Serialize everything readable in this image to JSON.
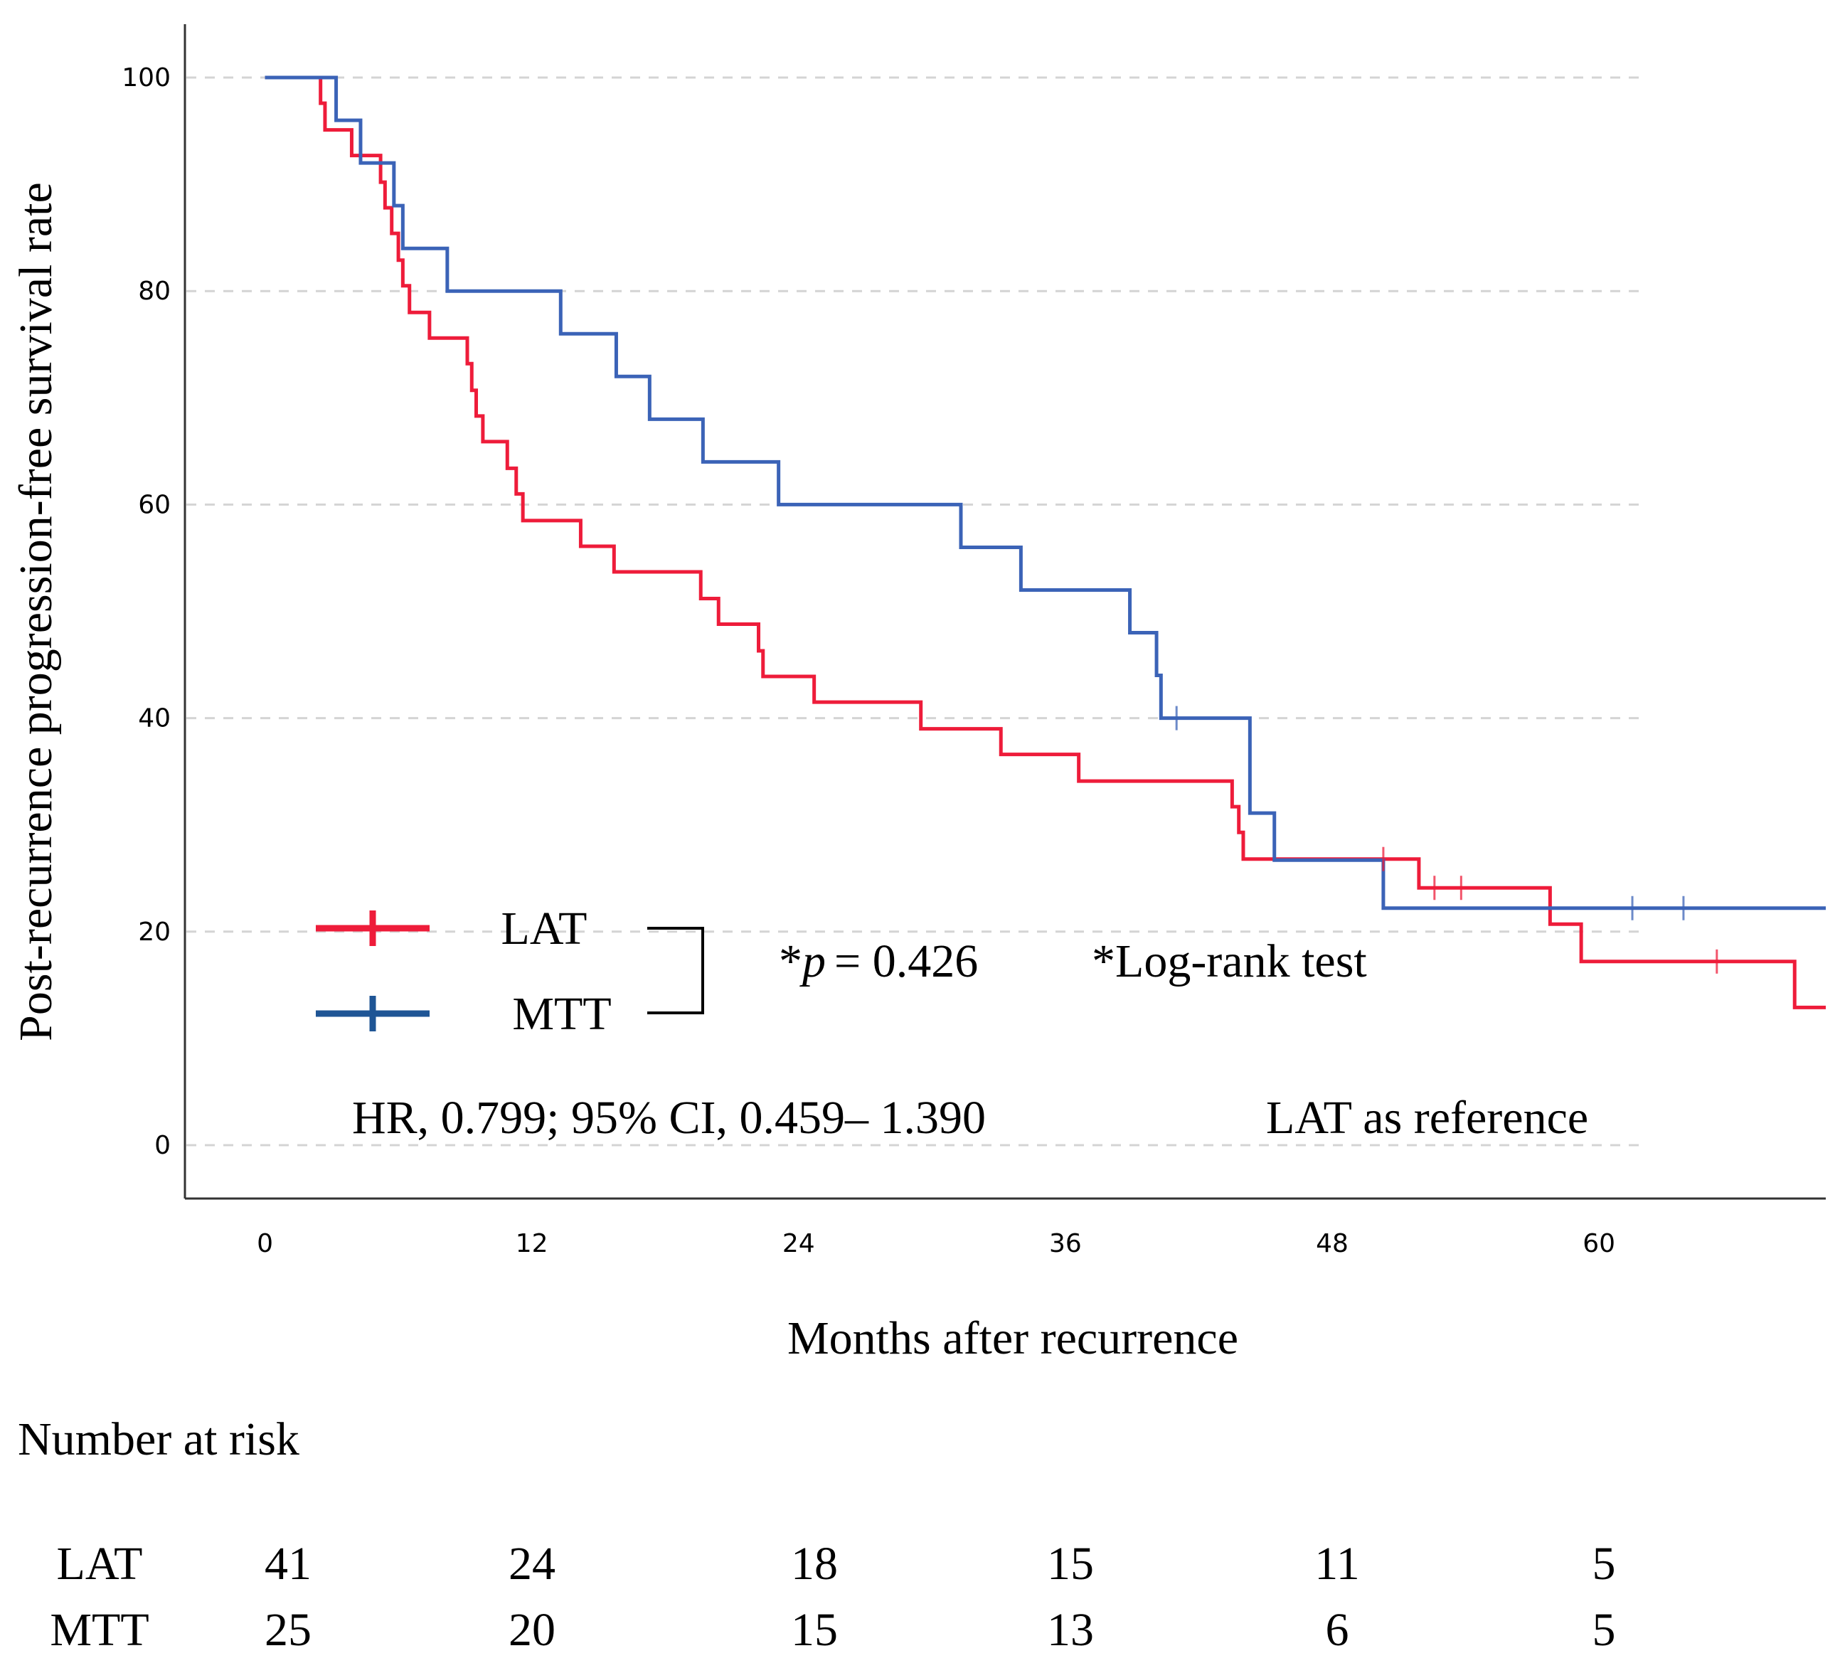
{
  "chart_data": {
    "type": "line",
    "subtype": "kaplan-meier",
    "title": "",
    "xlabel": "Months after recurrence",
    "ylabel": "Post-recurrence progression-free survival rate",
    "xlim": [
      -3.6,
      70.2
    ],
    "ylim": [
      -5,
      105
    ],
    "xticks": [
      0,
      12,
      24,
      36,
      48,
      60
    ],
    "yticks": [
      0,
      20,
      40,
      60,
      80,
      100
    ],
    "grid": "horizontal dashed",
    "series": [
      {
        "name": "LAT",
        "color": "#ee1c3a",
        "steps": [
          [
            0,
            100
          ],
          [
            2.5,
            100
          ],
          [
            2.5,
            97.6
          ],
          [
            2.7,
            95.1
          ],
          [
            3.9,
            92.7
          ],
          [
            5.2,
            90.2
          ],
          [
            5.4,
            87.8
          ],
          [
            5.7,
            85.4
          ],
          [
            6.0,
            82.9
          ],
          [
            6.2,
            80.5
          ],
          [
            6.5,
            78.0
          ],
          [
            7.4,
            75.6
          ],
          [
            9.1,
            73.2
          ],
          [
            9.3,
            70.7
          ],
          [
            9.5,
            68.3
          ],
          [
            9.8,
            65.9
          ],
          [
            10.9,
            63.4
          ],
          [
            11.3,
            61.0
          ],
          [
            11.6,
            58.5
          ],
          [
            14.2,
            56.1
          ],
          [
            15.7,
            53.7
          ],
          [
            19.6,
            51.2
          ],
          [
            20.4,
            48.8
          ],
          [
            22.2,
            46.3
          ],
          [
            22.4,
            43.9
          ],
          [
            24.7,
            41.5
          ],
          [
            29.5,
            39.0
          ],
          [
            33.1,
            36.6
          ],
          [
            36.6,
            34.1
          ],
          [
            43.5,
            31.7
          ],
          [
            43.8,
            29.3
          ],
          [
            44.0,
            26.8
          ],
          [
            51.9,
            24.1
          ],
          [
            57.8,
            20.7
          ],
          [
            59.2,
            17.2
          ],
          [
            68.8,
            12.9
          ],
          [
            70.2,
            12.9
          ]
        ],
        "censor": [
          [
            50.3,
            26.8
          ],
          [
            52.6,
            24.1
          ],
          [
            53.8,
            24.1
          ],
          [
            65.3,
            17.2
          ]
        ]
      },
      {
        "name": "MTT",
        "color": "#3b63b7",
        "steps": [
          [
            0,
            100
          ],
          [
            3.2,
            100
          ],
          [
            3.2,
            96
          ],
          [
            4.3,
            92
          ],
          [
            5.8,
            88
          ],
          [
            6.2,
            84
          ],
          [
            8.2,
            80
          ],
          [
            13.3,
            76
          ],
          [
            15.8,
            72
          ],
          [
            17.3,
            68
          ],
          [
            19.7,
            64
          ],
          [
            23.1,
            60
          ],
          [
            31.3,
            56
          ],
          [
            34.0,
            52
          ],
          [
            38.9,
            48
          ],
          [
            40.1,
            44
          ],
          [
            40.3,
            40
          ],
          [
            44.3,
            31.1
          ],
          [
            45.4,
            26.7
          ],
          [
            50.3,
            22.2
          ],
          [
            70.2,
            22.2
          ]
        ],
        "censor": [
          [
            41.0,
            40.0
          ],
          [
            61.5,
            22.2
          ],
          [
            63.8,
            22.2
          ]
        ]
      }
    ],
    "legend": {
      "position": "lower-left",
      "entries": [
        "LAT",
        "MTT"
      ]
    },
    "annotations": {
      "p_prefix": "*",
      "p_symbol": "p",
      "p_value": "= 0.426",
      "test": "*Log-rank test",
      "hr": "HR, 0.799; 95% CI, 0.459– 1.390",
      "reference": "LAT as reference"
    },
    "risk_table": {
      "title": "Number at risk",
      "rows": [
        {
          "label": "LAT",
          "values": [
            "41",
            "24",
            "18",
            "15",
            "11",
            "5"
          ]
        },
        {
          "label": "MTT",
          "values": [
            "25",
            "20",
            "15",
            "13",
            "6",
            "5"
          ]
        }
      ]
    }
  }
}
